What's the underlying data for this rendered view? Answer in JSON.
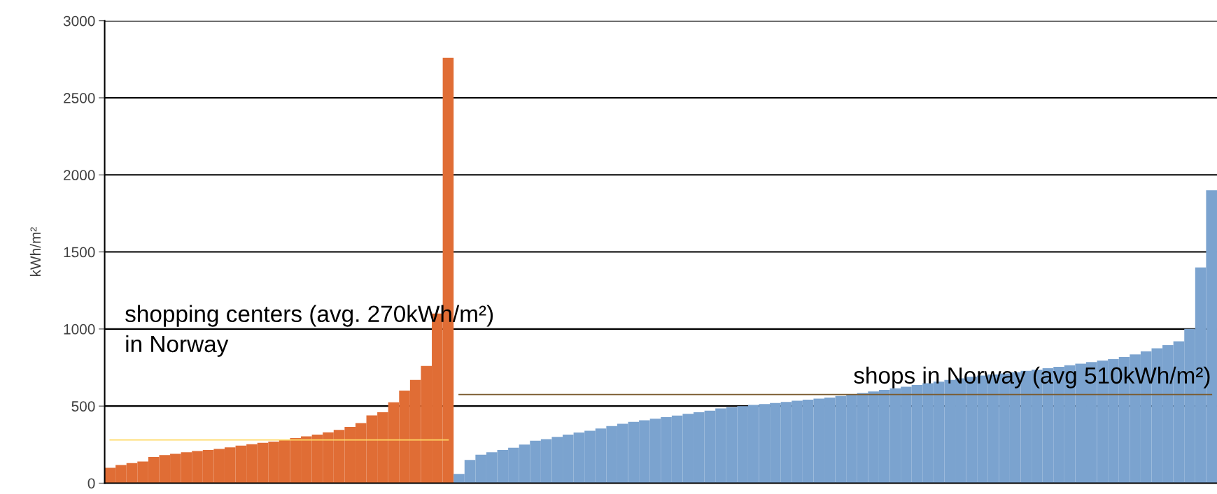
{
  "chart_data": {
    "type": "bar",
    "ylabel": "kWh/m²",
    "categories": [
      null,
      null,
      null,
      null,
      null,
      null,
      null,
      null,
      null,
      null,
      null,
      null,
      null,
      null,
      null,
      null,
      null,
      null,
      null,
      null,
      null,
      null,
      null,
      null,
      null,
      null,
      null,
      null,
      null,
      null,
      null,
      null,
      null,
      null,
      null,
      null,
      null,
      null,
      null,
      null,
      null,
      null,
      null,
      null,
      null,
      null,
      null,
      null,
      null,
      null,
      null,
      null,
      null,
      null,
      null,
      null,
      null,
      null,
      null,
      null,
      null,
      null,
      null,
      null,
      null,
      null,
      null,
      null,
      null,
      null,
      null,
      null,
      null,
      null,
      null,
      null,
      null,
      null,
      null,
      null,
      null,
      null,
      null,
      null,
      null,
      null,
      null,
      null,
      null,
      null,
      null,
      null,
      null,
      null,
      null,
      null,
      null,
      null,
      null,
      null,
      null,
      null
    ],
    "series": [
      {
        "color": "#e06d35",
        "values": [
          100,
          118,
          130,
          140,
          170,
          182,
          190,
          200,
          208,
          215,
          222,
          232,
          243,
          252,
          262,
          270,
          283,
          292,
          303,
          315,
          330,
          345,
          365,
          390,
          440,
          460,
          525,
          600,
          670,
          760,
          1100,
          2760,
          null,
          null,
          null,
          null,
          null,
          null,
          null,
          null,
          null,
          null,
          null,
          null,
          null,
          null,
          null,
          null,
          null,
          null,
          null,
          null,
          null,
          null,
          null,
          null,
          null,
          null,
          null,
          null,
          null,
          null,
          null,
          null,
          null,
          null,
          null,
          null,
          null,
          null,
          null,
          null,
          null,
          null,
          null,
          null,
          null,
          null,
          null,
          null,
          null,
          null,
          null,
          null,
          null,
          null,
          null,
          null,
          null,
          null,
          null,
          null,
          null,
          null,
          null,
          null,
          null,
          null,
          null,
          null,
          null,
          null
        ]
      },
      {
        "color": "#7ba3cf",
        "values": [
          null,
          null,
          null,
          null,
          null,
          null,
          null,
          null,
          null,
          null,
          null,
          null,
          null,
          null,
          null,
          null,
          null,
          null,
          null,
          null,
          null,
          null,
          null,
          null,
          null,
          null,
          null,
          null,
          null,
          null,
          null,
          null,
          60,
          150,
          185,
          200,
          215,
          230,
          250,
          275,
          285,
          300,
          315,
          328,
          340,
          355,
          370,
          385,
          398,
          408,
          418,
          428,
          438,
          450,
          460,
          470,
          485,
          492,
          500,
          507,
          513,
          520,
          527,
          535,
          542,
          548,
          555,
          565,
          575,
          585,
          595,
          605,
          615,
          625,
          637,
          648,
          658,
          670,
          680,
          690,
          698,
          705,
          712,
          720,
          728,
          737,
          745,
          755,
          765,
          775,
          785,
          795,
          805,
          818,
          835,
          855,
          875,
          895,
          920,
          1000,
          1400,
          1900
        ]
      },
      {
        "type": "line",
        "color": "#ffd966",
        "values": [
          280,
          280,
          280,
          280,
          280,
          280,
          280,
          280,
          280,
          280,
          280,
          280,
          280,
          280,
          280,
          280,
          280,
          280,
          280,
          280,
          280,
          280,
          280,
          280,
          280,
          280,
          280,
          280,
          280,
          280,
          280,
          280,
          null,
          null,
          null,
          null,
          null,
          null,
          null,
          null,
          null,
          null,
          null,
          null,
          null,
          null,
          null,
          null,
          null,
          null,
          null,
          null,
          null,
          null,
          null,
          null,
          null,
          null,
          null,
          null,
          null,
          null,
          null,
          null,
          null,
          null,
          null,
          null,
          null,
          null,
          null,
          null,
          null,
          null,
          null,
          null,
          null,
          null,
          null,
          null,
          null,
          null,
          null,
          null,
          null,
          null,
          null,
          null,
          null,
          null,
          null,
          null,
          null,
          null,
          null,
          null,
          null,
          null,
          null,
          null,
          null,
          null
        ]
      },
      {
        "type": "line",
        "color": "#7a5a2e",
        "values": [
          null,
          null,
          null,
          null,
          null,
          null,
          null,
          null,
          null,
          null,
          null,
          null,
          null,
          null,
          null,
          null,
          null,
          null,
          null,
          null,
          null,
          null,
          null,
          null,
          null,
          null,
          null,
          null,
          null,
          null,
          null,
          null,
          575,
          575,
          575,
          575,
          575,
          575,
          575,
          575,
          575,
          575,
          575,
          575,
          575,
          575,
          575,
          575,
          575,
          575,
          575,
          575,
          575,
          575,
          575,
          575,
          575,
          575,
          575,
          575,
          575,
          575,
          575,
          575,
          575,
          575,
          575,
          575,
          575,
          575,
          575,
          575,
          575,
          575,
          575,
          575,
          575,
          575,
          575,
          575,
          575,
          575,
          575,
          575,
          575,
          575,
          575,
          575,
          575,
          575,
          575,
          575,
          575,
          575,
          575,
          575,
          575,
          575,
          575,
          575,
          575,
          575
        ]
      }
    ],
    "annotations": [
      "shopping centers (avg. 270kWh/m²)\nin Norway",
      "shops in Norway (avg 510kWh/m²)"
    ],
    "ylim": [
      0,
      3000
    ],
    "yticks": [
      0,
      500,
      1000,
      1500,
      2000,
      2500,
      3000
    ],
    "grid": "y",
    "tick_labels": "y"
  }
}
